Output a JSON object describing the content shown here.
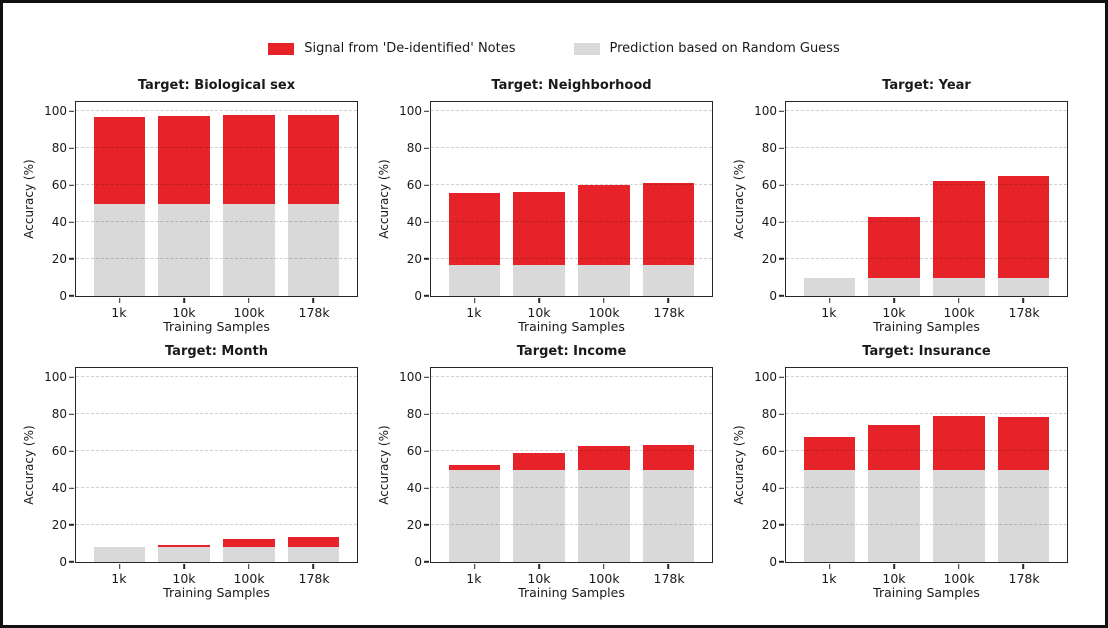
{
  "figure": {
    "type": "matplotlib-style static figure",
    "border_color": "#111111",
    "background": "#ffffff"
  },
  "legend": {
    "items": [
      {
        "name": "signal",
        "label": "Signal from 'De-identified' Notes",
        "color": "#e62329"
      },
      {
        "name": "random-guess",
        "label": "Prediction based on Random Guess",
        "color": "#d9d9d9"
      }
    ]
  },
  "chart_data": {
    "type": "bar",
    "layout": "2 rows x 3 columns",
    "categories": [
      "1k",
      "10k",
      "100k",
      "178k"
    ],
    "xlabel": "Training Samples",
    "ylabel": "Accuracy (%)",
    "yticks": [
      0,
      20,
      40,
      60,
      80,
      100
    ],
    "ylim": [
      0,
      105
    ],
    "grid": "horizontal dashed at each y tick above 0",
    "legend_position": "top-center",
    "bar_style": "red signal bar drawn full height from 0; gray random-guess baseline bar overlaid on lower portion",
    "series_colors": {
      "Signal from 'De-identified' Notes": "#e62329",
      "Prediction based on Random Guess": "#d9d9d9"
    },
    "subplots": [
      {
        "title": "Target: Biological sex",
        "series": [
          {
            "name": "Signal from 'De-identified' Notes",
            "values": [
              97,
              97.5,
              98,
              98
            ]
          },
          {
            "name": "Prediction based on Random Guess",
            "values": [
              50,
              50,
              50,
              50
            ]
          }
        ]
      },
      {
        "title": "Target: Neighborhood",
        "series": [
          {
            "name": "Signal from 'De-identified' Notes",
            "values": [
              55.5,
              56.5,
              60,
              61
            ]
          },
          {
            "name": "Prediction based on Random Guess",
            "values": [
              17,
              17,
              17,
              17
            ]
          }
        ]
      },
      {
        "title": "Target: Year",
        "series": [
          {
            "name": "Signal from 'De-identified' Notes",
            "values": [
              10,
              43,
              62.5,
              65
            ]
          },
          {
            "name": "Prediction based on Random Guess",
            "values": [
              10,
              10,
              10,
              10
            ]
          }
        ]
      },
      {
        "title": "Target: Month",
        "series": [
          {
            "name": "Signal from 'De-identified' Notes",
            "values": [
              8,
              9,
              12.5,
              13.5
            ]
          },
          {
            "name": "Prediction based on Random Guess",
            "values": [
              8.3,
              8.3,
              8.3,
              8.3
            ]
          }
        ]
      },
      {
        "title": "Target: Income",
        "series": [
          {
            "name": "Signal from 'De-identified' Notes",
            "values": [
              52.5,
              59,
              63,
              63.5
            ]
          },
          {
            "name": "Prediction based on Random Guess",
            "values": [
              50,
              50,
              50,
              50
            ]
          }
        ]
      },
      {
        "title": "Target: Insurance",
        "series": [
          {
            "name": "Signal from 'De-identified' Notes",
            "values": [
              67.5,
              74,
              79,
              78.5
            ]
          },
          {
            "name": "Prediction based on Random Guess",
            "values": [
              50,
              50,
              50,
              50
            ]
          }
        ]
      }
    ]
  }
}
